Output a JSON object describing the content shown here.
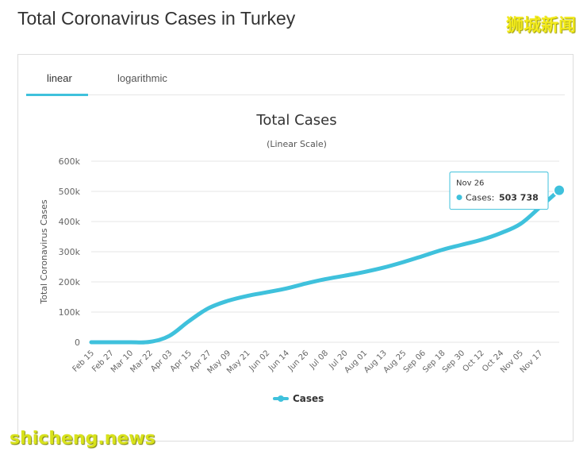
{
  "page": {
    "title": "Total Coronavirus Cases in Turkey",
    "watermark_top": "狮城新闻",
    "watermark_bottom": "shicheng.news"
  },
  "tabs": [
    {
      "label": "linear",
      "active": true
    },
    {
      "label": "logarithmic",
      "active": false
    }
  ],
  "colors": {
    "accent": "#3fc1dc",
    "line": "#3fc1dc",
    "grid": "#e6e6e6",
    "text": "#333333",
    "axis_text": "#666666"
  },
  "tooltip": {
    "date": "Nov 26",
    "label": "Cases:",
    "value": "503 738"
  },
  "chart_data": {
    "type": "line",
    "title": "Total Cases",
    "subtitle": "(Linear Scale)",
    "ylabel": "Total Coronavirus Cases",
    "xlabel": "",
    "ylim": [
      0,
      600000
    ],
    "yticks": [
      0,
      100000,
      200000,
      300000,
      400000,
      500000,
      600000
    ],
    "ytick_labels": [
      "0",
      "100k",
      "200k",
      "300k",
      "400k",
      "500k",
      "600k"
    ],
    "grid": true,
    "legend": "bottom-center",
    "categories": [
      "Feb 15",
      "Feb 27",
      "Mar 10",
      "Mar 22",
      "Apr 03",
      "Apr 15",
      "Apr 27",
      "May 09",
      "May 21",
      "Jun 02",
      "Jun 14",
      "Jun 26",
      "Jul 08",
      "Jul 20",
      "Aug 01",
      "Aug 13",
      "Aug 25",
      "Sep 06",
      "Sep 18",
      "Sep 30",
      "Oct 12",
      "Oct 24",
      "Nov 05",
      "Nov 17",
      "Nov 26"
    ],
    "tick_categories": [
      "Feb 15",
      "Feb 27",
      "Mar 10",
      "Mar 22",
      "Apr 03",
      "Apr 15",
      "Apr 27",
      "May 09",
      "May 21",
      "Jun 02",
      "Jun 14",
      "Jun 26",
      "Jul 08",
      "Jul 20",
      "Aug 01",
      "Aug 13",
      "Aug 25",
      "Sep 06",
      "Sep 18",
      "Sep 30",
      "Oct 12",
      "Oct 24",
      "Nov 05",
      "Nov 17"
    ],
    "series": [
      {
        "name": "Cases",
        "values": [
          0,
          0,
          0,
          1236,
          20921,
          69392,
          112261,
          137115,
          153548,
          165555,
          178239,
          194511,
          208938,
          220572,
          232856,
          247500,
          265515,
          285644,
          306302,
          323014,
          339387,
          361801,
          391739,
          446822,
          503738
        ]
      }
    ]
  }
}
